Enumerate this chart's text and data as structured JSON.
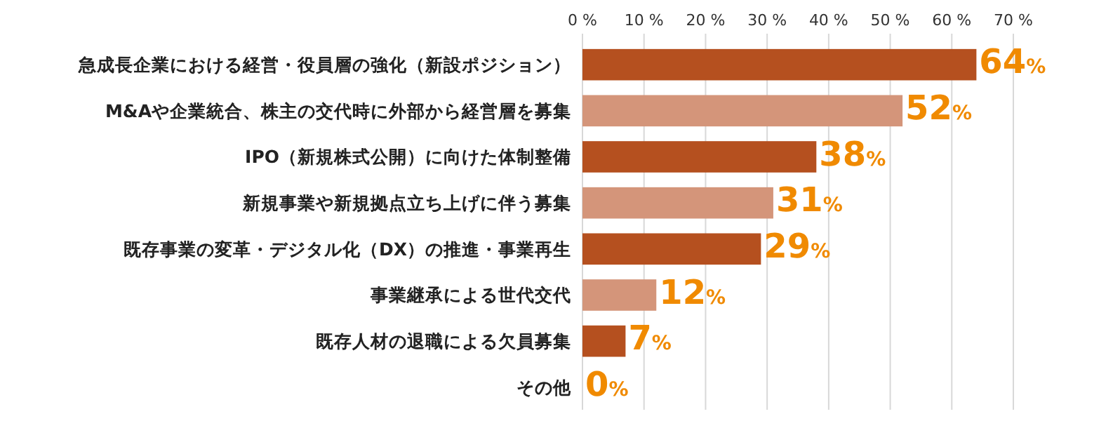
{
  "chart_data": {
    "type": "bar",
    "orientation": "horizontal",
    "categories": [
      "急成長企業における経営・役員層の強化（新設ポジション）",
      "M&Aや企業統合、株主の交代時に外部から経営層を募集",
      "IPO（新規株式公開）に向けた体制整備",
      "新規事業や新規拠点立ち上げに伴う募集",
      "既存事業の変革・デジタル化（DX）の推進・事業再生",
      "事業継承による世代交代",
      "既存人材の退職による欠員募集",
      "その他"
    ],
    "values": [
      64,
      52,
      38,
      31,
      29,
      12,
      7,
      0
    ],
    "colors": [
      "#b5501f",
      "#d4957a",
      "#b5501f",
      "#d4957a",
      "#b5501f",
      "#d4957a",
      "#b5501f",
      "#d4957a"
    ],
    "value_labels": [
      "64%",
      "52%",
      "38%",
      "31%",
      "29%",
      "12%",
      "7%",
      "0%"
    ],
    "xlim": [
      0,
      70
    ],
    "xticks": [
      {
        "value": 0,
        "label": "0 %"
      },
      {
        "value": 10,
        "label": "10 %"
      },
      {
        "value": 20,
        "label": "20 %"
      },
      {
        "value": 30,
        "label": "30 %"
      },
      {
        "value": 40,
        "label": "40 %"
      },
      {
        "value": 50,
        "label": "50 %"
      },
      {
        "value": 60,
        "label": "60 %"
      },
      {
        "value": 70,
        "label": "70 %"
      }
    ],
    "grid": "x"
  }
}
